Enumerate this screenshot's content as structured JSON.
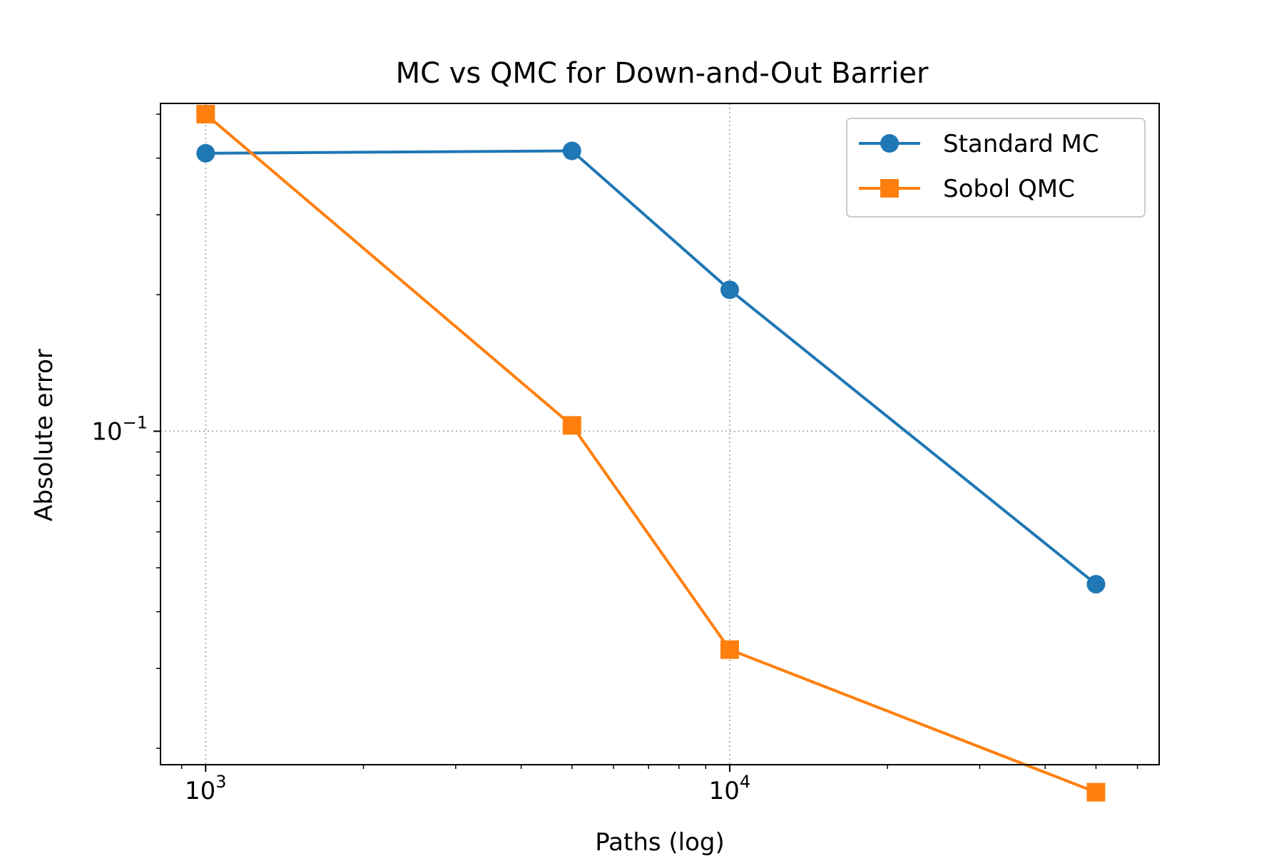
{
  "chart_data": {
    "type": "line",
    "title": "MC vs QMC for Down-and-Out Barrier",
    "xlabel": "Paths (log)",
    "ylabel": "Absolute error",
    "xscale": "log",
    "yscale": "log",
    "xlim": [
      820,
      66000
    ],
    "ylim": [
      0.0184,
      0.528
    ],
    "x_ticks": [
      {
        "value": 1000,
        "base": "10",
        "exp": "3"
      },
      {
        "value": 10000,
        "base": "10",
        "exp": "4"
      }
    ],
    "y_ticks": [
      {
        "value": 0.1,
        "base": "10",
        "exp": "−1"
      }
    ],
    "grid": true,
    "legend_position": "top-right",
    "series": [
      {
        "name": "Standard MC",
        "color": "#1f77b4",
        "marker": "circle",
        "x": [
          1000,
          5000,
          10000,
          50000
        ],
        "y": [
          0.41,
          0.415,
          0.205,
          0.046
        ]
      },
      {
        "name": "Sobol QMC",
        "color": "#ff7f0e",
        "marker": "square",
        "x": [
          1000,
          5000,
          10000,
          50000
        ],
        "y": [
          0.5,
          0.103,
          0.033,
          0.016
        ]
      }
    ]
  }
}
